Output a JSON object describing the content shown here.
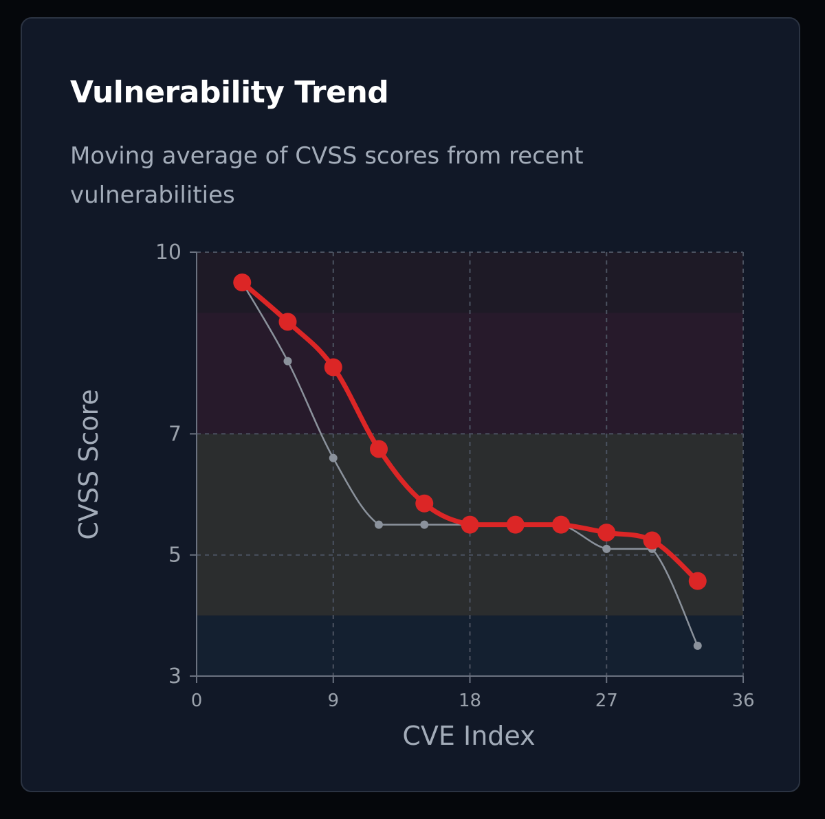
{
  "card": {
    "title": "Vulnerability Trend",
    "subtitle": "Moving average of CVSS scores from recent vulnerabilities"
  },
  "colors": {
    "background": "#05070b",
    "card": "#111827",
    "moving_average": "#dc2626",
    "raw_score": "#8b929c",
    "band_critical": "#1e1a26",
    "band_high": "#271a2b",
    "band_medium": "#2b2d2e",
    "band_low": "#142030"
  },
  "chart_data": {
    "type": "line",
    "xlabel": "CVE Index",
    "ylabel": "CVSS Score",
    "xlim": [
      0,
      36
    ],
    "ylim": [
      3,
      10
    ],
    "x_ticks": [
      0,
      9,
      18,
      27,
      36
    ],
    "y_ticks": [
      3,
      5,
      7,
      10
    ],
    "grid": true,
    "severity_bands": [
      {
        "from": 9,
        "to": 10
      },
      {
        "from": 7,
        "to": 9
      },
      {
        "from": 4,
        "to": 7
      },
      {
        "from": 3,
        "to": 4
      }
    ],
    "series": [
      {
        "key": "raw",
        "x": [
          3,
          6,
          9,
          12,
          15,
          18,
          21,
          24,
          27,
          30,
          33
        ],
        "values": [
          9.5,
          8.2,
          6.6,
          5.5,
          5.5,
          5.5,
          5.5,
          5.5,
          5.1,
          5.1,
          3.5
        ]
      },
      {
        "key": "moving_average",
        "x": [
          3,
          6,
          9,
          12,
          15,
          18,
          21,
          24,
          27,
          30,
          33
        ],
        "values": [
          9.5,
          8.85,
          8.1,
          6.75,
          5.85,
          5.5,
          5.5,
          5.5,
          5.37,
          5.24,
          4.57
        ]
      }
    ]
  }
}
